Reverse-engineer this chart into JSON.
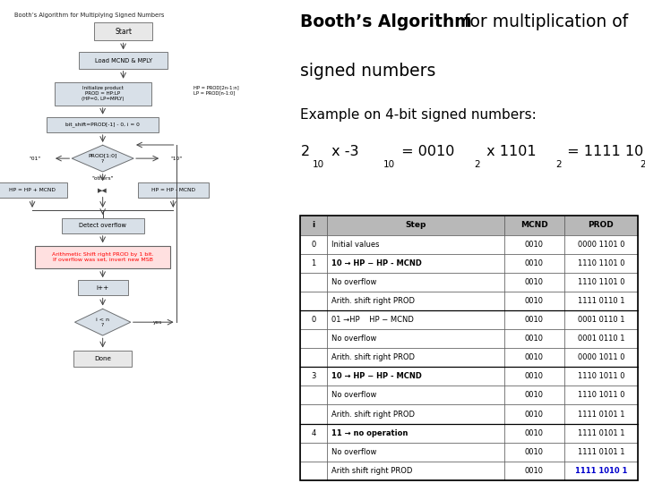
{
  "title_bold": "Booth’s Algorithm",
  "title_normal_1": " for multiplication of",
  "title_normal_2": "signed numbers",
  "example_line": "Example on 4-bit signed numbers:",
  "flowchart_title": "Booth’s Algorithm for Multiplying Signed Numbers",
  "table_headers": [
    "i",
    "Step",
    "MCND",
    "PROD"
  ],
  "table_rows": [
    [
      "0",
      "Initial values",
      "0010",
      "0000 1101 0"
    ],
    [
      "1",
      "10 → HP − HP - MCND",
      "0010",
      "1110 1101 0"
    ],
    [
      "",
      "No overflow",
      "0010",
      "1110 1101 0"
    ],
    [
      "",
      "Arith. shift right PROD",
      "0010",
      "1111 0110 1"
    ],
    [
      "0",
      "01 →HP    HP − MCND",
      "0010",
      "0001 0110 1"
    ],
    [
      "",
      "No overflow",
      "0010",
      "0001 0110 1"
    ],
    [
      "",
      "Arith. shift right PROD",
      "0010",
      "0000 1011 0"
    ],
    [
      "3",
      "10 → HP − HP - MCND",
      "0010",
      "1110 1011 0"
    ],
    [
      "",
      "No overflow",
      "0010",
      "1110 1011 0"
    ],
    [
      "",
      "Arith. shift right PROD",
      "0010",
      "1111 0101 1"
    ],
    [
      "4",
      "11 → no operation",
      "0010",
      "1111 0101 1"
    ],
    [
      "",
      "No overflow",
      "0010",
      "1111 0101 1"
    ],
    [
      "",
      "Arith shift right PROD",
      "0010",
      "1111 1010 1"
    ]
  ],
  "last_prod_color": "#0000CC",
  "background_color": "#ffffff",
  "table_header_bg": "#b8b8b8",
  "flowchart_box_color": "#d8e0e8",
  "flowchart_start_color": "#e8e8e8"
}
